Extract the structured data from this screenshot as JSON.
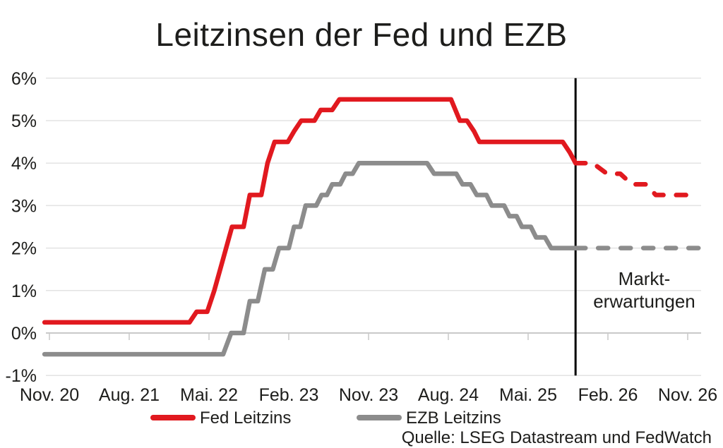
{
  "title": "Leitzinsen der Fed und EZB",
  "colors": {
    "fed": "#e1191f",
    "ezb": "#8c8c8c",
    "divider": "#000000",
    "grid": "#e3e3e3",
    "axis": "#c9c9c9",
    "text": "#1d1d1b"
  },
  "chart_data": {
    "type": "line",
    "title": "Leitzinsen der Fed und EZB",
    "x_unit": "months since Nov 2020",
    "x_axis": {
      "tick_labels": [
        "Nov. 20",
        "Aug. 21",
        "Mai. 22",
        "Feb. 23",
        "Nov. 23",
        "Aug. 24",
        "Mai. 25",
        "Feb. 26",
        "Nov. 26"
      ],
      "tick_months": [
        0,
        9,
        18,
        27,
        36,
        45,
        54,
        63,
        72
      ]
    },
    "y_axis": {
      "tick_labels": [
        "6%",
        "5%",
        "4%",
        "3%",
        "2%",
        "1%",
        "0%",
        "-1%"
      ],
      "values": [
        6,
        5,
        4,
        3,
        2,
        1,
        0,
        -1
      ]
    },
    "ylim": [
      -1,
      6
    ],
    "xlim": [
      -0.6,
      73.5
    ],
    "grid": "horizontal",
    "divider_month": 59.35,
    "annotation": {
      "line1": "Markt-",
      "line2": "erwartungen"
    },
    "legend": [
      {
        "label": "Fed Leitzins",
        "color": "#e1191f"
      },
      {
        "label": "EZB Leitzins",
        "color": "#8c8c8c"
      }
    ],
    "source": "Quelle: LSEG Datastream und FedWatch",
    "series": [
      {
        "name": "Fed Leitzins",
        "color": "#e1191f",
        "style": "solid",
        "points": [
          [
            -0.55,
            0.25
          ],
          [
            15.8,
            0.25
          ],
          [
            16.6,
            0.5
          ],
          [
            17.8,
            0.5
          ],
          [
            18.6,
            1.0
          ],
          [
            19.6,
            1.75
          ],
          [
            20.6,
            2.5
          ],
          [
            21.9,
            2.5
          ],
          [
            22.6,
            3.25
          ],
          [
            23.9,
            3.25
          ],
          [
            24.6,
            4.0
          ],
          [
            25.4,
            4.5
          ],
          [
            26.9,
            4.5
          ],
          [
            27.6,
            4.75
          ],
          [
            28.4,
            5.0
          ],
          [
            29.9,
            5.0
          ],
          [
            30.6,
            5.25
          ],
          [
            31.9,
            5.25
          ],
          [
            32.7,
            5.5
          ],
          [
            45.3,
            5.5
          ],
          [
            46.3,
            5.0
          ],
          [
            47.1,
            5.0
          ],
          [
            47.9,
            4.75
          ],
          [
            48.5,
            4.5
          ],
          [
            57.9,
            4.5
          ],
          [
            58.7,
            4.25
          ],
          [
            59.35,
            4.0
          ]
        ]
      },
      {
        "name": "Fed Leitzins Markterwartungen",
        "color": "#e1191f",
        "style": "dashed",
        "points": [
          [
            59.35,
            4.0
          ],
          [
            61.3,
            4.0
          ],
          [
            62.9,
            3.75
          ],
          [
            64.4,
            3.75
          ],
          [
            65.7,
            3.5
          ],
          [
            67.3,
            3.5
          ],
          [
            68.4,
            3.25
          ],
          [
            73.2,
            3.25
          ]
        ]
      },
      {
        "name": "EZB Leitzins",
        "color": "#8c8c8c",
        "style": "solid",
        "points": [
          [
            -0.55,
            -0.5
          ],
          [
            19.6,
            -0.5
          ],
          [
            20.5,
            0.0
          ],
          [
            21.9,
            0.0
          ],
          [
            22.6,
            0.75
          ],
          [
            23.5,
            0.75
          ],
          [
            24.3,
            1.5
          ],
          [
            25.2,
            1.5
          ],
          [
            25.9,
            2.0
          ],
          [
            27.0,
            2.0
          ],
          [
            27.6,
            2.5
          ],
          [
            28.3,
            2.5
          ],
          [
            28.9,
            3.0
          ],
          [
            30.1,
            3.0
          ],
          [
            30.7,
            3.25
          ],
          [
            31.3,
            3.25
          ],
          [
            31.9,
            3.5
          ],
          [
            32.8,
            3.5
          ],
          [
            33.4,
            3.75
          ],
          [
            34.2,
            3.75
          ],
          [
            34.9,
            4.0
          ],
          [
            42.6,
            4.0
          ],
          [
            43.4,
            3.75
          ],
          [
            45.9,
            3.75
          ],
          [
            46.6,
            3.5
          ],
          [
            47.5,
            3.5
          ],
          [
            48.2,
            3.25
          ],
          [
            49.3,
            3.25
          ],
          [
            49.9,
            3.0
          ],
          [
            51.3,
            3.0
          ],
          [
            51.9,
            2.75
          ],
          [
            52.7,
            2.75
          ],
          [
            53.3,
            2.5
          ],
          [
            54.3,
            2.5
          ],
          [
            54.9,
            2.25
          ],
          [
            55.9,
            2.25
          ],
          [
            56.6,
            2.0
          ],
          [
            59.35,
            2.0
          ]
        ]
      },
      {
        "name": "EZB Leitzins Markterwartungen",
        "color": "#8c8c8c",
        "style": "dashed",
        "points": [
          [
            59.35,
            2.0
          ],
          [
            73.2,
            2.0
          ]
        ]
      }
    ]
  }
}
